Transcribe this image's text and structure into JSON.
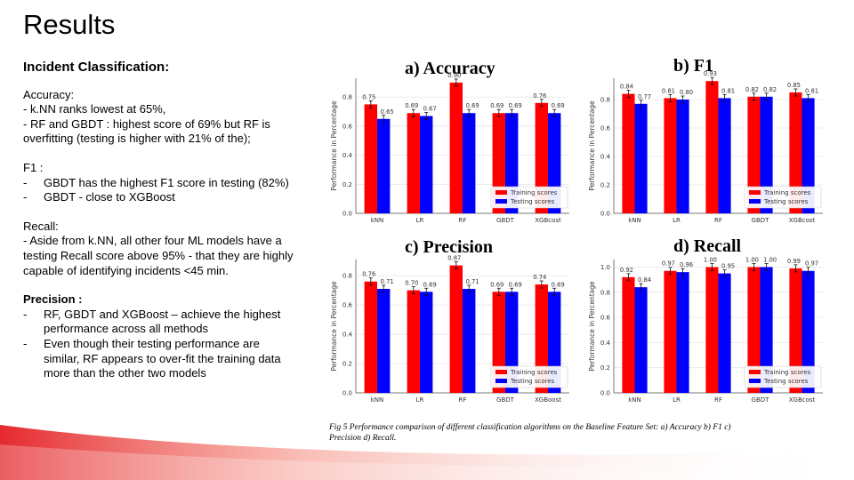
{
  "slide": {
    "title": "Results",
    "section_heading": "Incident Classification:",
    "accuracy": {
      "title": "Accuracy:",
      "lines": [
        "- k.NN ranks lowest at 65%,",
        "- RF and GBDT : highest score of 69% but RF is",
        "overfitting (testing is higher with 21% of the);"
      ]
    },
    "f1": {
      "title": "F1 :",
      "bullets": [
        "GBDT has the highest F1 score in testing (82%)",
        "GBDT  - close to XGBoost"
      ]
    },
    "recall": {
      "title": "Recall:",
      "lines": [
        " - Aside from k.NN, all other four ML models have a",
        "testing Recall score above 95% - that they are highly",
        "capable of identifying incidents <45 min."
      ]
    },
    "precision": {
      "title": "Precision :",
      "bullets": [
        [
          "RF, GBDT and XGBoost – achieve the highest",
          "performance across all methods"
        ],
        [
          "Even though their testing performance are",
          "similar, RF appears to over-fit the training data",
          "more than the other two models"
        ]
      ]
    },
    "caption": "Fig 5 Performance comparison of different classification algorithms on the Baseline Feature Set: a) Accuracy b) F1 c) Precision d) Recall."
  },
  "colors": {
    "training": "#ff0000",
    "testing": "#0000ff",
    "accent": "#e31e24"
  },
  "chart_data": [
    {
      "type": "bar",
      "title": "a) Accuracy",
      "ylabel": "Performance in Percentage",
      "categories": [
        "kNN",
        "LR",
        "RF",
        "GBDT",
        "XGBcost"
      ],
      "ylim": [
        0,
        0.93
      ],
      "yticks": [
        0.0,
        0.2,
        0.4,
        0.6,
        0.8
      ],
      "series": [
        {
          "name": "Training scores",
          "values": [
            0.75,
            0.69,
            0.9,
            0.69,
            0.76
          ]
        },
        {
          "name": "Testing scores",
          "values": [
            0.65,
            0.67,
            0.69,
            0.69,
            0.69
          ]
        }
      ],
      "value_labels": [
        [
          "0.75",
          "0.65"
        ],
        [
          "0.69",
          "0.67"
        ],
        [
          "0.90",
          "0.69"
        ],
        [
          "0.69",
          "0.69"
        ],
        [
          "0.76",
          "0.69"
        ]
      ],
      "legend": "bottom-right"
    },
    {
      "type": "bar",
      "title": "b) F1",
      "ylabel": "Performance in Percentage",
      "categories": [
        "kNN",
        "LR",
        "RF",
        "GBDT",
        "XGBcost"
      ],
      "ylim": [
        0,
        0.95
      ],
      "yticks": [
        0.0,
        0.2,
        0.4,
        0.6,
        0.8
      ],
      "series": [
        {
          "name": "Training scores",
          "values": [
            0.84,
            0.81,
            0.93,
            0.82,
            0.85
          ]
        },
        {
          "name": "Testing scores",
          "values": [
            0.77,
            0.8,
            0.81,
            0.82,
            0.81
          ]
        }
      ],
      "value_labels": [
        [
          "0.84",
          "0.77"
        ],
        [
          "0.81",
          "0.80"
        ],
        [
          "0.93",
          "0.81"
        ],
        [
          "0.82",
          "0.82"
        ],
        [
          "0.85",
          "0.81"
        ]
      ],
      "legend": "bottom-right"
    },
    {
      "type": "bar",
      "title": "c) Precision",
      "ylabel": "Performance in Percentage",
      "categories": [
        "kNN",
        "LR",
        "RF",
        "GBDT",
        "XGBoost"
      ],
      "ylim": [
        0,
        0.91
      ],
      "yticks": [
        0.0,
        0.2,
        0.4,
        0.6,
        0.8
      ],
      "series": [
        {
          "name": "Training scores",
          "values": [
            0.76,
            0.7,
            0.87,
            0.69,
            0.74
          ]
        },
        {
          "name": "Testing scores",
          "values": [
            0.71,
            0.69,
            0.71,
            0.69,
            0.69
          ]
        }
      ],
      "value_labels": [
        [
          "0.76",
          "0.71"
        ],
        [
          "0.70",
          "0.69"
        ],
        [
          "0.87",
          "0.71"
        ],
        [
          "0.69",
          "0.69"
        ],
        [
          "0.74",
          "0.69"
        ]
      ],
      "legend": "bottom-right"
    },
    {
      "type": "bar",
      "title": "d) Recall",
      "ylabel": "Performance in Percentage",
      "categories": [
        "kNN",
        "LR",
        "RF",
        "GBDT",
        "XGBcost"
      ],
      "ylim": [
        0,
        1.06
      ],
      "yticks": [
        0.0,
        0.2,
        0.4,
        0.6,
        0.8,
        1.0
      ],
      "series": [
        {
          "name": "Training scores",
          "values": [
            0.92,
            0.97,
            1.0,
            1.0,
            0.99
          ]
        },
        {
          "name": "Testing scores",
          "values": [
            0.84,
            0.96,
            0.95,
            1.0,
            0.97
          ]
        }
      ],
      "value_labels": [
        [
          "0.92",
          "0.84"
        ],
        [
          "0.97",
          "0.96"
        ],
        [
          "1.00",
          "0.95"
        ],
        [
          "1.00",
          "1.00"
        ],
        [
          "0.99",
          "0.97"
        ]
      ],
      "legend": "bottom-right"
    }
  ]
}
